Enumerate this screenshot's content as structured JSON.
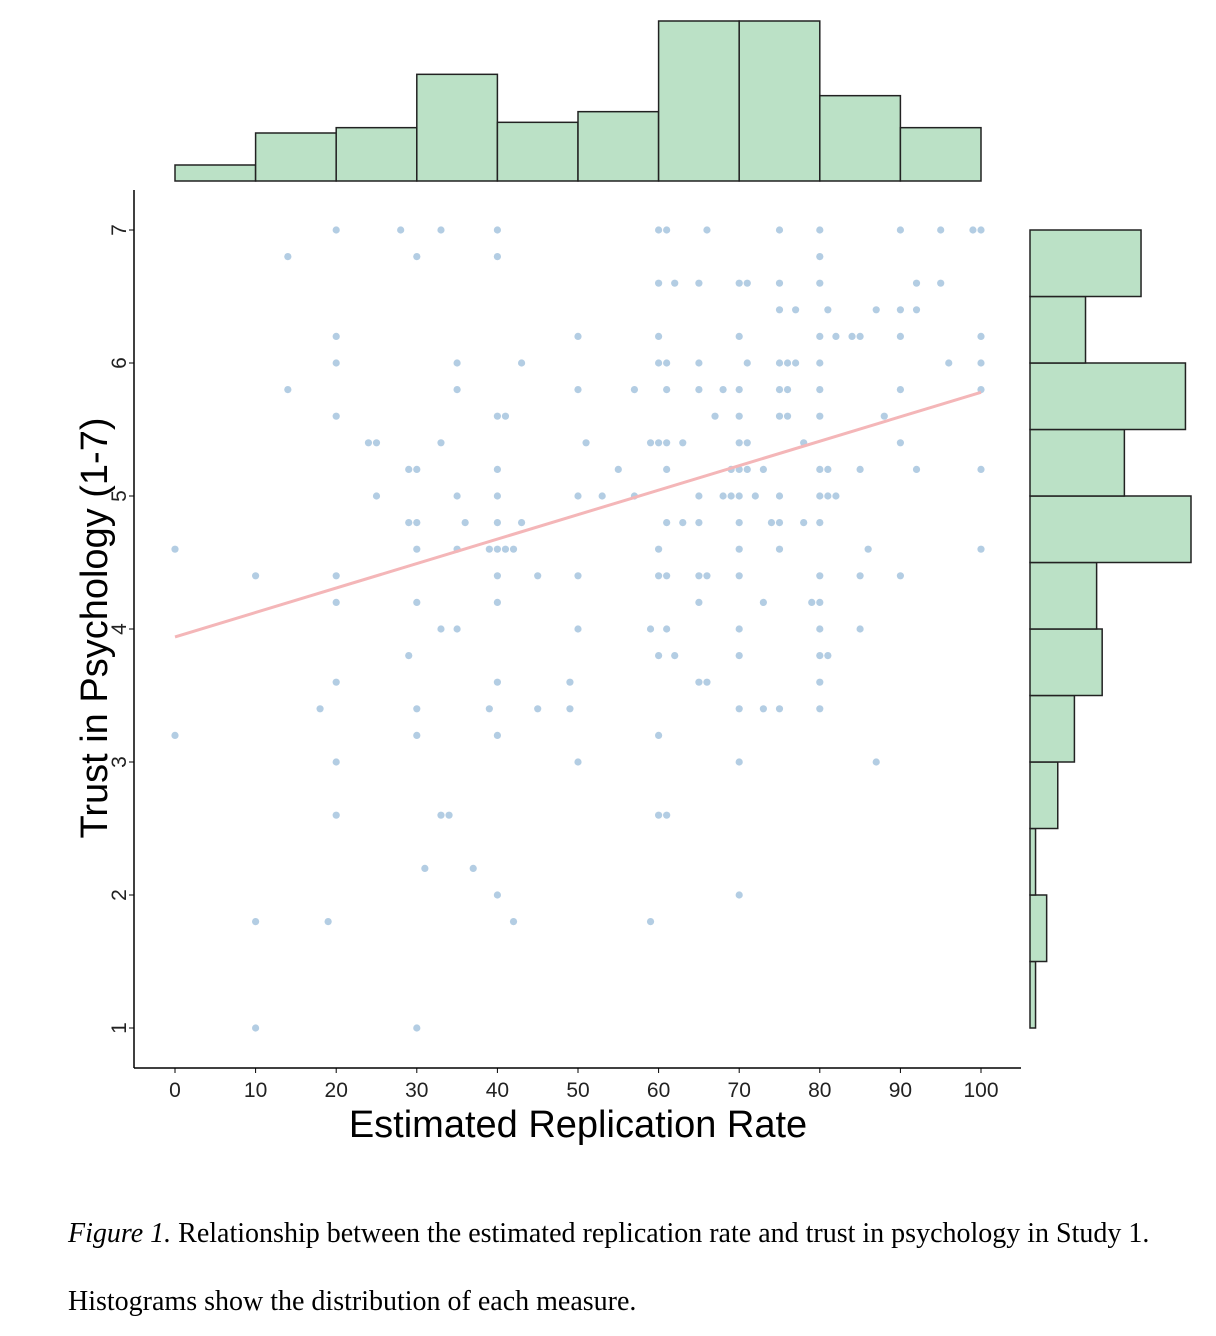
{
  "chart_data": {
    "type": "scatter",
    "xlabel": "Estimated Replication Rate",
    "ylabel": "Trust in Psychology (1-7)",
    "xlim": [
      -5,
      105
    ],
    "ylim": [
      0.7,
      7.3
    ],
    "x_ticks": [
      "0",
      "10",
      "20",
      "30",
      "40",
      "50",
      "60",
      "70",
      "80",
      "90",
      "100"
    ],
    "y_ticks": [
      "1",
      "2",
      "3",
      "4",
      "5",
      "6",
      "7"
    ],
    "colors": {
      "point": "#b3cde3",
      "trend": "#f4b6b8",
      "hist_fill": "#bbe1c6",
      "hist_stroke": "#222222"
    },
    "trend_line": {
      "x": [
        0,
        100
      ],
      "y": [
        3.94,
        5.78
      ]
    },
    "x_histogram": {
      "bin_edges": [
        0,
        10,
        20,
        30,
        40,
        50,
        60,
        70,
        80,
        90,
        100
      ],
      "counts": [
        3,
        9,
        10,
        20,
        11,
        13,
        30,
        30,
        16,
        10
      ]
    },
    "y_histogram": {
      "bin_edges": [
        1.0,
        1.5,
        2.0,
        2.5,
        3.0,
        3.5,
        4.0,
        4.5,
        5.0,
        5.5,
        6.0,
        6.5,
        7.0
      ],
      "counts": [
        1,
        3,
        1,
        5,
        8,
        13,
        12,
        29,
        17,
        28,
        10,
        20
      ]
    },
    "points": [
      [
        20,
        7
      ],
      [
        28,
        7
      ],
      [
        33,
        7
      ],
      [
        40,
        7
      ],
      [
        60,
        7
      ],
      [
        61,
        7
      ],
      [
        66,
        7
      ],
      [
        75,
        7
      ],
      [
        80,
        7
      ],
      [
        90,
        7
      ],
      [
        95,
        7
      ],
      [
        99,
        7
      ],
      [
        100,
        7
      ],
      [
        14,
        6.8
      ],
      [
        30,
        6.8
      ],
      [
        40,
        6.8
      ],
      [
        80,
        6.8
      ],
      [
        60,
        6.6
      ],
      [
        62,
        6.6
      ],
      [
        65,
        6.6
      ],
      [
        70,
        6.6
      ],
      [
        71,
        6.6
      ],
      [
        75,
        6.6
      ],
      [
        80,
        6.6
      ],
      [
        92,
        6.6
      ],
      [
        95,
        6.6
      ],
      [
        75,
        6.4
      ],
      [
        77,
        6.4
      ],
      [
        81,
        6.4
      ],
      [
        87,
        6.4
      ],
      [
        90,
        6.4
      ],
      [
        92,
        6.4
      ],
      [
        20,
        6.2
      ],
      [
        50,
        6.2
      ],
      [
        60,
        6.2
      ],
      [
        70,
        6.2
      ],
      [
        80,
        6.2
      ],
      [
        82,
        6.2
      ],
      [
        84,
        6.2
      ],
      [
        85,
        6.2
      ],
      [
        90,
        6.2
      ],
      [
        100,
        6.2
      ],
      [
        20,
        6
      ],
      [
        35,
        6
      ],
      [
        43,
        6
      ],
      [
        60,
        6
      ],
      [
        61,
        6
      ],
      [
        65,
        6
      ],
      [
        71,
        6
      ],
      [
        75,
        6
      ],
      [
        76,
        6
      ],
      [
        77,
        6
      ],
      [
        80,
        6
      ],
      [
        96,
        6
      ],
      [
        100,
        6
      ],
      [
        14,
        5.8
      ],
      [
        35,
        5.8
      ],
      [
        50,
        5.8
      ],
      [
        57,
        5.8
      ],
      [
        61,
        5.8
      ],
      [
        65,
        5.8
      ],
      [
        68,
        5.8
      ],
      [
        70,
        5.8
      ],
      [
        75,
        5.8
      ],
      [
        76,
        5.8
      ],
      [
        80,
        5.8
      ],
      [
        90,
        5.8
      ],
      [
        100,
        5.8
      ],
      [
        20,
        5.6
      ],
      [
        40,
        5.6
      ],
      [
        41,
        5.6
      ],
      [
        67,
        5.6
      ],
      [
        70,
        5.6
      ],
      [
        75,
        5.6
      ],
      [
        76,
        5.6
      ],
      [
        80,
        5.6
      ],
      [
        88,
        5.6
      ],
      [
        24,
        5.4
      ],
      [
        25,
        5.4
      ],
      [
        33,
        5.4
      ],
      [
        51,
        5.4
      ],
      [
        59,
        5.4
      ],
      [
        60,
        5.4
      ],
      [
        61,
        5.4
      ],
      [
        63,
        5.4
      ],
      [
        70,
        5.4
      ],
      [
        71,
        5.4
      ],
      [
        78,
        5.4
      ],
      [
        90,
        5.4
      ],
      [
        29,
        5.2
      ],
      [
        30,
        5.2
      ],
      [
        40,
        5.2
      ],
      [
        55,
        5.2
      ],
      [
        61,
        5.2
      ],
      [
        69,
        5.2
      ],
      [
        70,
        5.2
      ],
      [
        71,
        5.2
      ],
      [
        73,
        5.2
      ],
      [
        80,
        5.2
      ],
      [
        81,
        5.2
      ],
      [
        85,
        5.2
      ],
      [
        92,
        5.2
      ],
      [
        100,
        5.2
      ],
      [
        25,
        5
      ],
      [
        35,
        5
      ],
      [
        40,
        5
      ],
      [
        50,
        5
      ],
      [
        53,
        5
      ],
      [
        57,
        5
      ],
      [
        65,
        5
      ],
      [
        68,
        5
      ],
      [
        69,
        5
      ],
      [
        70,
        5
      ],
      [
        72,
        5
      ],
      [
        75,
        5
      ],
      [
        80,
        5
      ],
      [
        81,
        5
      ],
      [
        82,
        5
      ],
      [
        29,
        4.8
      ],
      [
        30,
        4.8
      ],
      [
        36,
        4.8
      ],
      [
        40,
        4.8
      ],
      [
        43,
        4.8
      ],
      [
        61,
        4.8
      ],
      [
        63,
        4.8
      ],
      [
        65,
        4.8
      ],
      [
        70,
        4.8
      ],
      [
        74,
        4.8
      ],
      [
        75,
        4.8
      ],
      [
        78,
        4.8
      ],
      [
        80,
        4.8
      ],
      [
        0,
        4.6
      ],
      [
        30,
        4.6
      ],
      [
        35,
        4.6
      ],
      [
        39,
        4.6
      ],
      [
        40,
        4.6
      ],
      [
        41,
        4.6
      ],
      [
        42,
        4.6
      ],
      [
        60,
        4.6
      ],
      [
        70,
        4.6
      ],
      [
        75,
        4.6
      ],
      [
        86,
        4.6
      ],
      [
        100,
        4.6
      ],
      [
        10,
        4.4
      ],
      [
        20,
        4.4
      ],
      [
        40,
        4.4
      ],
      [
        45,
        4.4
      ],
      [
        50,
        4.4
      ],
      [
        60,
        4.4
      ],
      [
        61,
        4.4
      ],
      [
        65,
        4.4
      ],
      [
        66,
        4.4
      ],
      [
        70,
        4.4
      ],
      [
        80,
        4.4
      ],
      [
        85,
        4.4
      ],
      [
        90,
        4.4
      ],
      [
        20,
        4.2
      ],
      [
        30,
        4.2
      ],
      [
        40,
        4.2
      ],
      [
        65,
        4.2
      ],
      [
        73,
        4.2
      ],
      [
        79,
        4.2
      ],
      [
        80,
        4.2
      ],
      [
        33,
        4
      ],
      [
        35,
        4
      ],
      [
        50,
        4
      ],
      [
        59,
        4
      ],
      [
        61,
        4
      ],
      [
        70,
        4
      ],
      [
        80,
        4
      ],
      [
        85,
        4
      ],
      [
        29,
        3.8
      ],
      [
        60,
        3.8
      ],
      [
        62,
        3.8
      ],
      [
        70,
        3.8
      ],
      [
        80,
        3.8
      ],
      [
        81,
        3.8
      ],
      [
        20,
        3.6
      ],
      [
        40,
        3.6
      ],
      [
        49,
        3.6
      ],
      [
        65,
        3.6
      ],
      [
        66,
        3.6
      ],
      [
        80,
        3.6
      ],
      [
        18,
        3.4
      ],
      [
        30,
        3.4
      ],
      [
        39,
        3.4
      ],
      [
        45,
        3.4
      ],
      [
        49,
        3.4
      ],
      [
        70,
        3.4
      ],
      [
        73,
        3.4
      ],
      [
        75,
        3.4
      ],
      [
        80,
        3.4
      ],
      [
        0,
        3.2
      ],
      [
        30,
        3.2
      ],
      [
        40,
        3.2
      ],
      [
        60,
        3.2
      ],
      [
        20,
        3
      ],
      [
        50,
        3
      ],
      [
        70,
        3
      ],
      [
        87,
        3
      ],
      [
        20,
        2.6
      ],
      [
        33,
        2.6
      ],
      [
        34,
        2.6
      ],
      [
        60,
        2.6
      ],
      [
        61,
        2.6
      ],
      [
        31,
        2.2
      ],
      [
        37,
        2.2
      ],
      [
        40,
        2
      ],
      [
        70,
        2
      ],
      [
        10,
        1.8
      ],
      [
        19,
        1.8
      ],
      [
        42,
        1.8
      ],
      [
        59,
        1.8
      ],
      [
        10,
        1
      ],
      [
        30,
        1
      ]
    ]
  },
  "caption": {
    "label": "Figure 1.",
    "text": " Relationship between the estimated replication rate and trust in psychology in Study 1. Histograms show the distribution of each measure."
  }
}
